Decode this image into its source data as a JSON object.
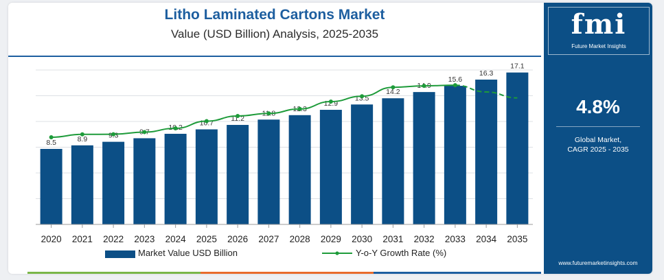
{
  "header": {
    "title": "Litho Laminated Cartons Market",
    "subtitle": "Value (USD Billion) Analysis, 2025-2035"
  },
  "chart_data": {
    "type": "bar",
    "categories": [
      "2020",
      "2021",
      "2022",
      "2023",
      "2024",
      "2025",
      "2026",
      "2027",
      "2028",
      "2029",
      "2030",
      "2031",
      "2032",
      "2033",
      "2034",
      "2035"
    ],
    "series": [
      {
        "name": "Market Value USD Billion",
        "type": "bar",
        "color": "#0c4f86",
        "values": [
          8.5,
          8.9,
          9.3,
          9.7,
          10.2,
          10.7,
          11.2,
          11.8,
          12.3,
          12.9,
          13.5,
          14.2,
          14.9,
          15.6,
          16.3,
          17.1
        ]
      },
      {
        "name": "Y-o-Y Growth Rate (%)",
        "type": "line",
        "color": "#1e9b3a"
      }
    ],
    "data_labels": [
      "8.5",
      "8.9",
      "9.3",
      "9.7",
      "10.2",
      "10.7",
      "11.2",
      "11.8",
      "12.3",
      "12.9",
      "13.5",
      "14.2",
      "14.9",
      "15.6",
      "16.3",
      "17.1"
    ],
    "grid": "horizontal",
    "legend_position": "bottom"
  },
  "legend": {
    "bar_label": "Market Value USD Billion",
    "line_label": "Y-o-Y Growth Rate (%)"
  },
  "sidebar": {
    "logo_text": "fmi",
    "logo_subtext": "Future Market Insights",
    "cagr_value": "4.8%",
    "cagr_label_line1": "Global Market,",
    "cagr_label_line2": "CAGR 2025 - 2035",
    "website": "www.futuremarketinsights.com"
  },
  "colors": {
    "bar": "#0c4f86",
    "line": "#1e9b3a",
    "title": "#1d5e9f",
    "sidebar_bg": "#0c4f86",
    "stripe_green": "#7ab648",
    "stripe_orange": "#e96b2c",
    "stripe_blue": "#1d5e9f"
  }
}
